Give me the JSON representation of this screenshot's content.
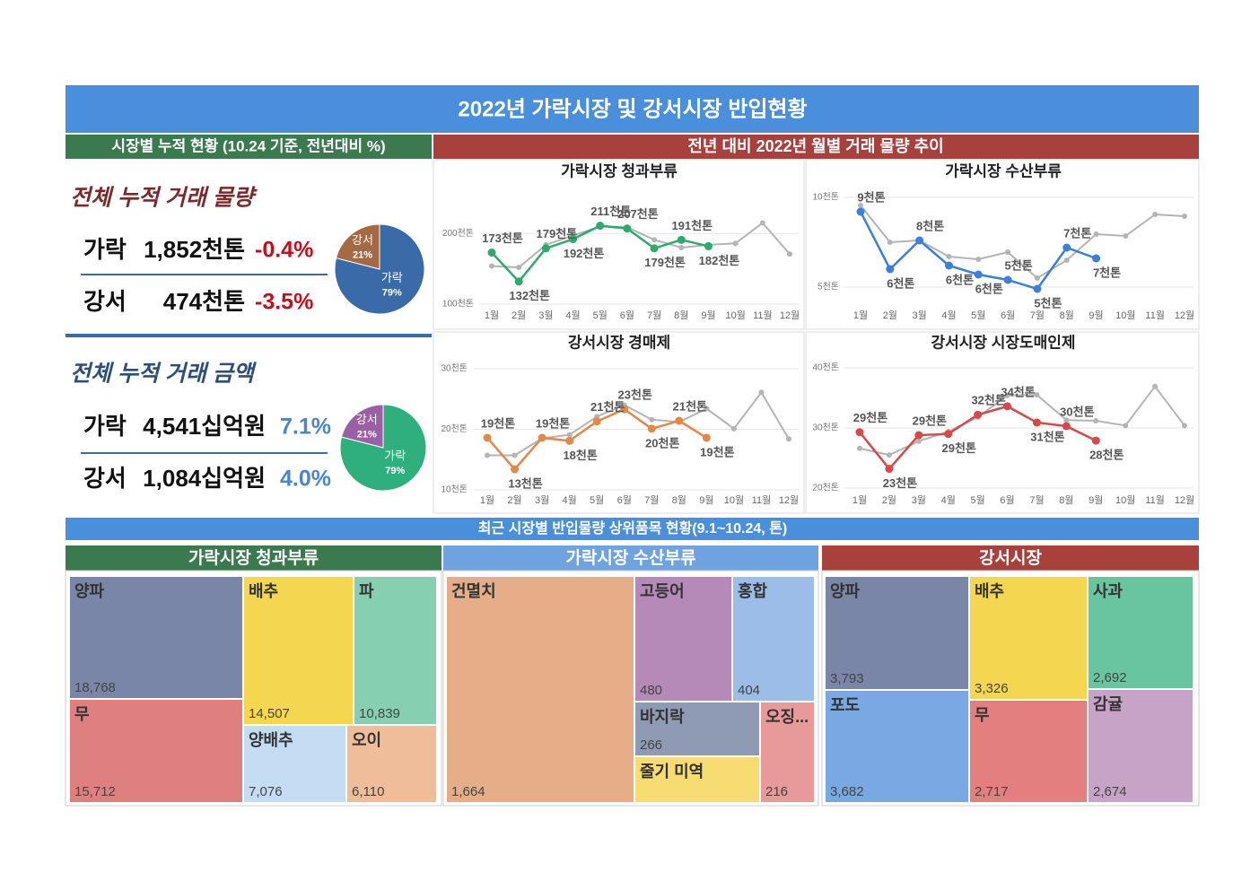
{
  "header": {
    "title": "2022년 가락시장 및 강서시장 반입현황"
  },
  "summary": {
    "title": "시장별 누적 현황 (10.24 기준, 전년대비 %)",
    "sections": [
      {
        "title": "전체 누적 거래 물량",
        "rows": [
          [
            "가락",
            "1,852천톤",
            "-0.4%"
          ],
          [
            "강서",
            "474천톤",
            "-3.5%"
          ]
        ]
      },
      {
        "title": "전체 누적 거래 금액",
        "rows": [
          [
            "가락",
            "4,541십억원",
            "7.1%"
          ],
          [
            "강서",
            "1,084십억원",
            "4.0%"
          ]
        ]
      }
    ]
  },
  "trends": {
    "title": "전년 대비 2022년 월별 거래 물량 추이"
  },
  "ranking": {
    "title": "최근 시장별 반입물량 상위품목 현황(9.1~10.24, 톤)"
  },
  "chart_data": [
    {
      "type": "line",
      "title": "가락시장 청과부류",
      "categories": [
        "1월",
        "2월",
        "3월",
        "4월",
        "5월",
        "6월",
        "7월",
        "8월",
        "9월",
        "10월",
        "11월",
        "12월"
      ],
      "ylim": [
        100,
        260
      ],
      "yticks": [
        {
          "value": 100,
          "label": "100천톤"
        },
        {
          "value": 200,
          "label": "200천톤"
        }
      ],
      "grid": true,
      "series": [
        {
          "color": "#b4b4b4",
          "values": [
            154,
            152,
            184,
            197,
            210,
            209,
            191,
            180,
            184,
            186,
            215,
            171
          ]
        },
        {
          "color": "#2eaa6e",
          "values": [
            173,
            132,
            179,
            192,
            211,
            207,
            179,
            191,
            182,
            null,
            null,
            null
          ],
          "value_labels": [
            "173천톤",
            "132천톤",
            "179천톤",
            "192천톤",
            "211천톤",
            "207천톤",
            "179천톤",
            "191천톤",
            "182천톤",
            null,
            null,
            null
          ]
        }
      ]
    },
    {
      "type": "line",
      "title": "가락시장 수산부류",
      "categories": [
        "1월",
        "2월",
        "3월",
        "4월",
        "5월",
        "6월",
        "7월",
        "8월",
        "9월",
        "10월",
        "11월",
        "12월"
      ],
      "ylim": [
        4,
        10.5
      ],
      "yticks": [
        {
          "value": 5,
          "label": "5천톤"
        },
        {
          "value": 10,
          "label": "10천톤"
        }
      ],
      "grid": true,
      "series": [
        {
          "color": "#b4b4b4",
          "values": [
            9.55,
            7.5,
            7.6,
            6.7,
            6.55,
            6.95,
            5.5,
            6.5,
            7.95,
            7.85,
            9.05,
            8.95
          ]
        },
        {
          "color": "#3d7fdc",
          "values": [
            9.2,
            6.0,
            7.6,
            6.2,
            5.7,
            5.4,
            4.9,
            7.2,
            6.6,
            null,
            null,
            null
          ],
          "value_labels": [
            "9천톤",
            "6천톤",
            "8천톤",
            "6천톤",
            "6천톤",
            "5천톤",
            "5천톤",
            "7천톤",
            "7천톤",
            null,
            null,
            null
          ]
        }
      ]
    },
    {
      "type": "line",
      "title": "강서시장 경매제",
      "categories": [
        "1월",
        "2월",
        "3월",
        "4월",
        "5월",
        "6월",
        "7월",
        "8월",
        "9월",
        "10월",
        "11월",
        "12월"
      ],
      "ylim": [
        10,
        30
      ],
      "yticks": [
        {
          "value": 10,
          "label": "10천톤"
        },
        {
          "value": 20,
          "label": "20천톤"
        },
        {
          "value": 30,
          "label": "30천톤"
        }
      ],
      "grid": true,
      "series": [
        {
          "color": "#b4b4b4",
          "values": [
            15.7,
            15.7,
            18.5,
            19.1,
            22.1,
            24,
            21.6,
            21.2,
            23.4,
            20.1,
            26.1,
            18.4
          ]
        },
        {
          "color": "#e0894a",
          "values": [
            18.6,
            13.4,
            18.6,
            18.1,
            21.3,
            23.3,
            20.1,
            21.4,
            18.6,
            null,
            null,
            null
          ],
          "value_labels": [
            "19천톤",
            "13천톤",
            "19천톤",
            "18천톤",
            "21천톤",
            "23천톤",
            "20천톤",
            "21천톤",
            "19천톤",
            null,
            null,
            null
          ]
        }
      ]
    },
    {
      "type": "line",
      "title": "강서시장 시장도매인제",
      "categories": [
        "1월",
        "2월",
        "3월",
        "4월",
        "5월",
        "6월",
        "7월",
        "8월",
        "9월",
        "10월",
        "11월",
        "12월"
      ],
      "ylim": [
        20,
        40
      ],
      "yticks": [
        {
          "value": 20,
          "label": "20천톤"
        },
        {
          "value": 30,
          "label": "30천톤"
        },
        {
          "value": 40,
          "label": "40천톤"
        }
      ],
      "grid": true,
      "series": [
        {
          "color": "#b4b4b4",
          "values": [
            26.6,
            25.5,
            27.8,
            29.4,
            31.8,
            35.4,
            35.5,
            31.3,
            31.2,
            30.4,
            36.9,
            30.4
          ]
        },
        {
          "color": "#d9474a",
          "values": [
            29.3,
            23.2,
            28.8,
            29.0,
            32.2,
            33.6,
            30.9,
            30.3,
            27.9,
            null,
            null,
            null
          ],
          "value_labels": [
            "29천톤",
            "23천톤",
            "29천톤",
            "29천톤",
            "32천톤",
            "34천톤",
            "31천톤",
            "30천톤",
            "28천톤",
            null,
            null,
            null
          ]
        }
      ]
    },
    {
      "type": "pie",
      "categories": [
        "가락",
        "강서"
      ],
      "values": [
        79,
        21
      ],
      "value_labels": [
        "79%",
        "21%"
      ],
      "colors": [
        "#3a6aa8",
        "#a56a43"
      ]
    },
    {
      "type": "pie",
      "categories": [
        "가락",
        "강서"
      ],
      "values": [
        79,
        21
      ],
      "value_labels": [
        "79%",
        "21%"
      ],
      "colors": [
        "#2eaf7d",
        "#9b5fa5"
      ]
    },
    {
      "type": "treemap",
      "title": "가락시장 청과부류",
      "categories": [
        "양파",
        "무",
        "배추",
        "파",
        "양배추",
        "오이"
      ],
      "values": [
        18768,
        15712,
        14507,
        10839,
        7076,
        6110
      ],
      "value_labels": [
        "18,768",
        "15,712",
        "14,507",
        "10,839",
        "7,076",
        "6,110"
      ],
      "colors": [
        "#7a86a8",
        "#e07f7f",
        "#f4d650",
        "#86cfb1",
        "#c5ddf2",
        "#f0bd9a"
      ]
    },
    {
      "type": "treemap",
      "title": "가락시장 수산부류",
      "categories": [
        "건멸치",
        "고등어",
        "홍합",
        "바지락",
        "줄기 미역",
        "오징..."
      ],
      "values": [
        1664,
        480,
        404,
        266,
        null,
        216
      ],
      "value_labels": [
        "1,664",
        "480",
        "404",
        "266",
        null,
        "216"
      ],
      "colors": [
        "#e5ad88",
        "#b68ab8",
        "#9bbde8",
        "#8f9ab5",
        "#f6dc72",
        "#e89999"
      ]
    },
    {
      "type": "treemap",
      "title": "강서시장",
      "categories": [
        "양파",
        "포도",
        "배추",
        "무",
        "사과",
        "감귤"
      ],
      "values": [
        3793,
        3682,
        3326,
        2717,
        2692,
        2674
      ],
      "value_labels": [
        "3,793",
        "3,682",
        "3,326",
        "2,717",
        "2,692",
        "2,674"
      ],
      "colors": [
        "#7a86a8",
        "#7aa8e2",
        "#f4d650",
        "#e37f7f",
        "#69c59f",
        "#c8a3c8"
      ]
    }
  ]
}
